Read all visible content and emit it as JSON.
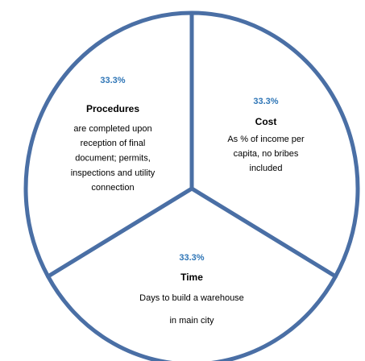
{
  "chart_data": {
    "type": "pie",
    "categories": [
      "Cost",
      "Time",
      "Procedures"
    ],
    "values": [
      33.3,
      33.3,
      33.3
    ],
    "value_labels": [
      "33.3%",
      "33.3%",
      "33.3%"
    ],
    "descriptions": [
      [
        "As % of income per",
        "capita, no bribes",
        "included"
      ],
      [
        "Days to build a warehouse",
        "in main city"
      ],
      [
        "are completed upon",
        "reception of final",
        "document; permits,",
        "inspections and utility",
        "connection"
      ]
    ],
    "color": "#ffffff",
    "edge_color": "#4a6fa5",
    "label_color": "#2e75b6"
  }
}
